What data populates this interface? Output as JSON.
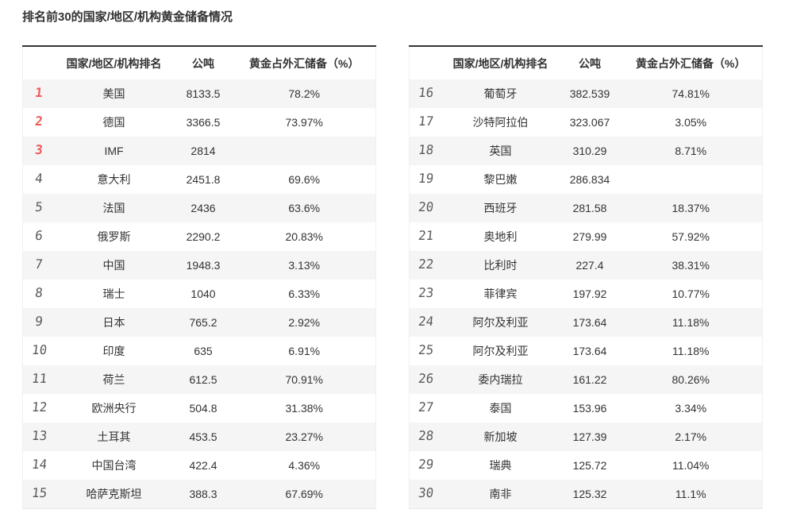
{
  "title": "排名前30的国家/地区/机构黄金储备情况",
  "colors": {
    "rank_top3": "#ee5b5b",
    "rank_normal": "#5a5a5a",
    "row_stripe": "#f5f5f5",
    "table_top_border": "#333333",
    "text": "#333333"
  },
  "chart_data": [
    {
      "type": "table",
      "columns": [
        "国家/地区/机构排名",
        "公吨",
        "黄金占外汇储备（%）"
      ],
      "rows": [
        {
          "rank": "1",
          "name": "美国",
          "tons": "8133.5",
          "pct": "78.2%"
        },
        {
          "rank": "2",
          "name": "德国",
          "tons": "3366.5",
          "pct": "73.97%"
        },
        {
          "rank": "3",
          "name": "IMF",
          "tons": "2814",
          "pct": ""
        },
        {
          "rank": "4",
          "name": "意大利",
          "tons": "2451.8",
          "pct": "69.6%"
        },
        {
          "rank": "5",
          "name": "法国",
          "tons": "2436",
          "pct": "63.6%"
        },
        {
          "rank": "6",
          "name": "俄罗斯",
          "tons": "2290.2",
          "pct": "20.83%"
        },
        {
          "rank": "7",
          "name": "中国",
          "tons": "1948.3",
          "pct": "3.13%"
        },
        {
          "rank": "8",
          "name": "瑞士",
          "tons": "1040",
          "pct": "6.33%"
        },
        {
          "rank": "9",
          "name": "日本",
          "tons": "765.2",
          "pct": "2.92%"
        },
        {
          "rank": "10",
          "name": "印度",
          "tons": "635",
          "pct": "6.91%"
        },
        {
          "rank": "11",
          "name": "荷兰",
          "tons": "612.5",
          "pct": "70.91%"
        },
        {
          "rank": "12",
          "name": "欧洲央行",
          "tons": "504.8",
          "pct": "31.38%"
        },
        {
          "rank": "13",
          "name": "土耳其",
          "tons": "453.5",
          "pct": "23.27%"
        },
        {
          "rank": "14",
          "name": "中国台湾",
          "tons": "422.4",
          "pct": "4.36%"
        },
        {
          "rank": "15",
          "name": "哈萨克斯坦",
          "tons": "388.3",
          "pct": "67.69%"
        }
      ]
    },
    {
      "type": "table",
      "columns": [
        "国家/地区/机构排名",
        "公吨",
        "黄金占外汇储备（%）"
      ],
      "rows": [
        {
          "rank": "16",
          "name": "葡萄牙",
          "tons": "382.539",
          "pct": "74.81%"
        },
        {
          "rank": "17",
          "name": "沙特阿拉伯",
          "tons": "323.067",
          "pct": "3.05%"
        },
        {
          "rank": "18",
          "name": "英国",
          "tons": "310.29",
          "pct": "8.71%"
        },
        {
          "rank": "19",
          "name": "黎巴嫩",
          "tons": "286.834",
          "pct": ""
        },
        {
          "rank": "20",
          "name": "西班牙",
          "tons": "281.58",
          "pct": "18.37%"
        },
        {
          "rank": "21",
          "name": "奥地利",
          "tons": "279.99",
          "pct": "57.92%"
        },
        {
          "rank": "22",
          "name": "比利时",
          "tons": "227.4",
          "pct": "38.31%"
        },
        {
          "rank": "23",
          "name": "菲律宾",
          "tons": "197.92",
          "pct": "10.77%"
        },
        {
          "rank": "24",
          "name": "阿尔及利亚",
          "tons": "173.64",
          "pct": "11.18%"
        },
        {
          "rank": "25",
          "name": "阿尔及利亚",
          "tons": "173.64",
          "pct": "11.18%"
        },
        {
          "rank": "26",
          "name": "委内瑞拉",
          "tons": "161.22",
          "pct": "80.26%"
        },
        {
          "rank": "27",
          "name": "泰国",
          "tons": "153.96",
          "pct": "3.34%"
        },
        {
          "rank": "28",
          "name": "新加坡",
          "tons": "127.39",
          "pct": "2.17%"
        },
        {
          "rank": "29",
          "name": "瑞典",
          "tons": "125.72",
          "pct": "11.04%"
        },
        {
          "rank": "30",
          "name": "南非",
          "tons": "125.32",
          "pct": "11.1%"
        }
      ]
    }
  ]
}
